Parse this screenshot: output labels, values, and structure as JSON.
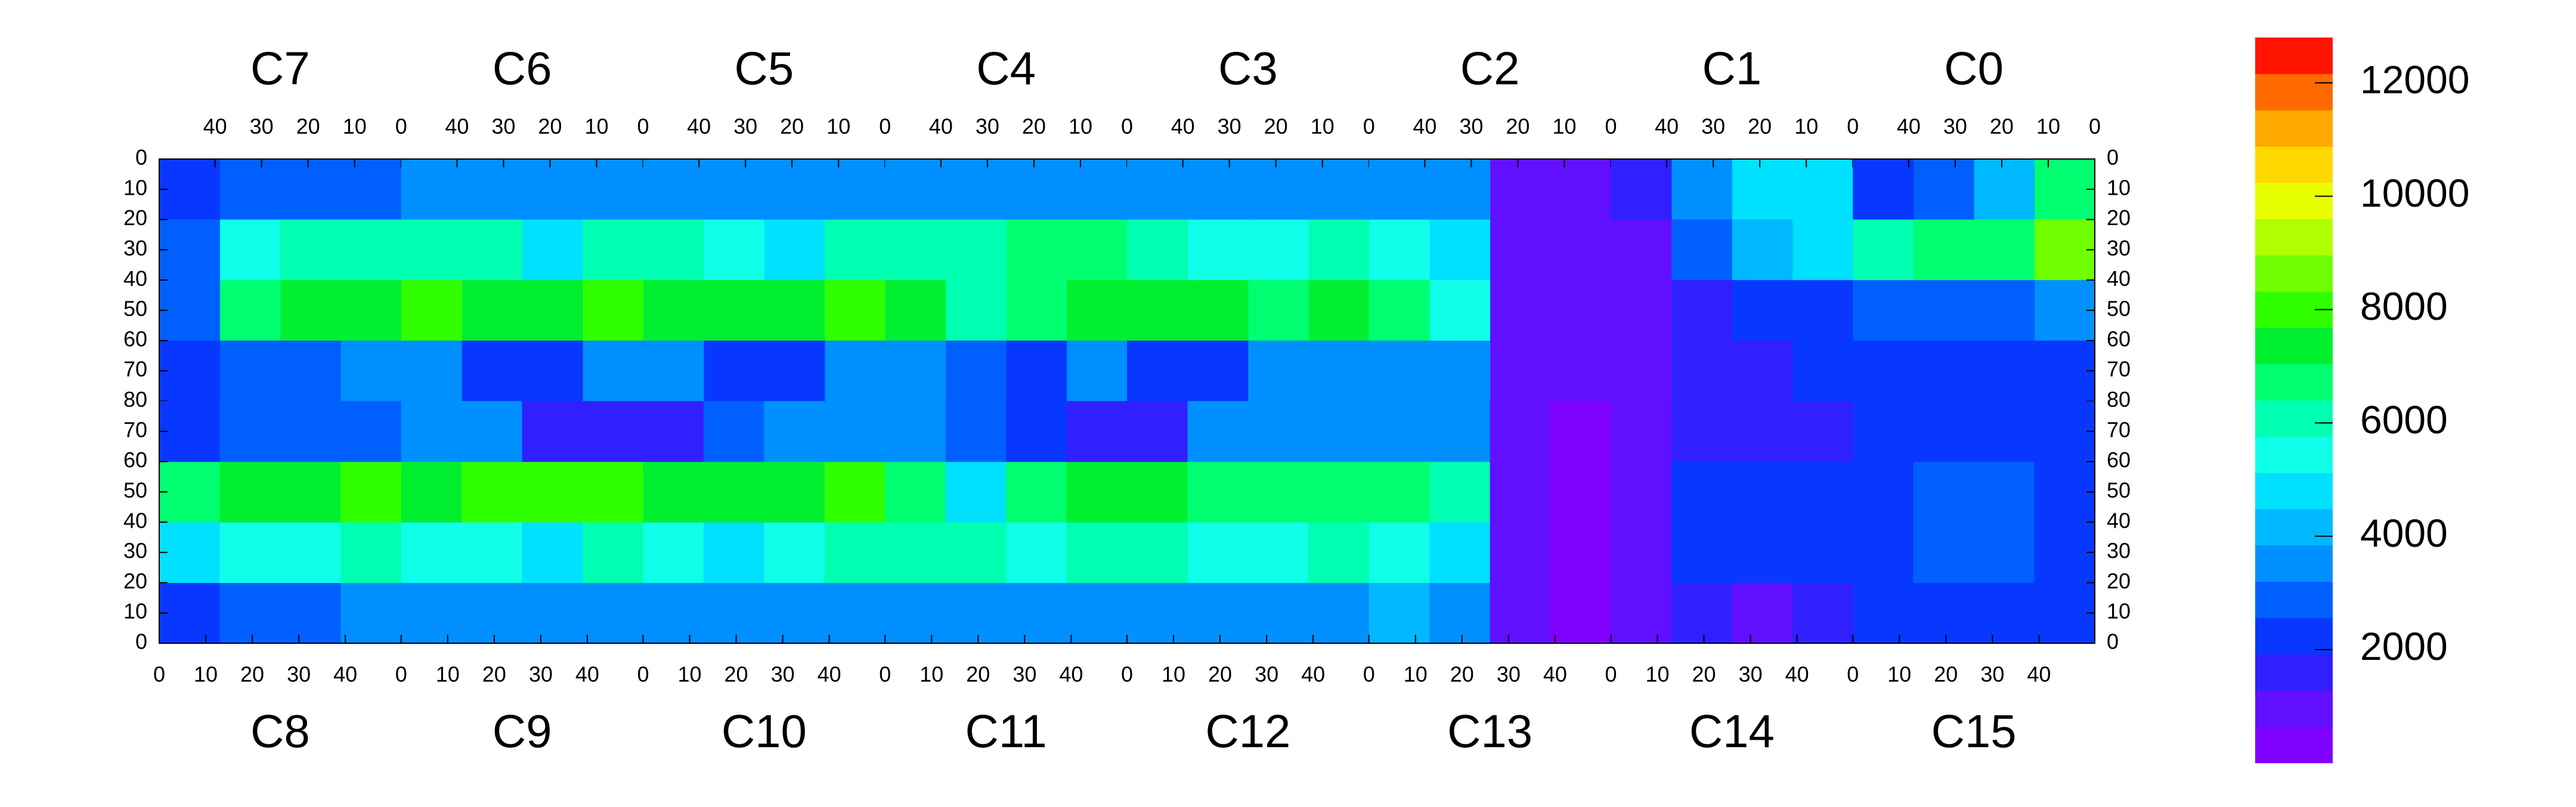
{
  "chart_data": {
    "type": "heatmap",
    "xbins": [
      0,
      13,
      26,
      39,
      52
    ],
    "ybins": [
      0,
      20,
      40,
      60,
      80
    ],
    "xlim": [
      0,
      52
    ],
    "ylim": [
      0,
      80
    ],
    "xticks": [
      0,
      10,
      20,
      30,
      40
    ],
    "yticks": [
      0,
      10,
      20,
      30,
      40,
      50,
      60,
      70,
      80
    ],
    "zlim": [
      0,
      12800
    ],
    "zticks": [
      2000,
      4000,
      6000,
      8000,
      10000,
      12000
    ],
    "palette": [
      "#8000ff",
      "#6010ff",
      "#3020ff",
      "#0838ff",
      "#0060ff",
      "#0090ff",
      "#00b8ff",
      "#00e0ff",
      "#10ffe8",
      "#00ffb0",
      "#00ff70",
      "#00f030",
      "#30ff00",
      "#70ff00",
      "#b0ff00",
      "#e8ff00",
      "#ffd800",
      "#ffa800",
      "#ff6a00",
      "#ff1400"
    ],
    "top_chips": [
      {
        "name": "C7",
        "values": [
          [
            3000,
            3000,
            2800,
            2200
          ],
          [
            6000,
            6000,
            5500,
            3000
          ],
          [
            7500,
            7500,
            6500,
            3000
          ],
          [
            3200,
            3000,
            3000,
            2500
          ]
        ]
      },
      {
        "name": "C6",
        "values": [
          [
            3200,
            3500,
            3400,
            3200
          ],
          [
            6200,
            5000,
            5800,
            6000
          ],
          [
            8000,
            7500,
            7500,
            7800
          ],
          [
            3500,
            2000,
            2200,
            3500
          ]
        ]
      },
      {
        "name": "C5",
        "values": [
          [
            3200,
            3400,
            3400,
            3300
          ],
          [
            5800,
            5000,
            5200,
            5800
          ],
          [
            7800,
            7600,
            7600,
            7600
          ],
          [
            3300,
            2000,
            2200,
            3300
          ]
        ]
      },
      {
        "name": "C4",
        "values": [
          [
            3300,
            3500,
            3500,
            3200
          ],
          [
            6500,
            6400,
            6200,
            6000
          ],
          [
            7600,
            7000,
            6000,
            7400
          ],
          [
            3200,
            2000,
            2600,
            3400
          ]
        ]
      },
      {
        "name": "C3",
        "values": [
          [
            3400,
            3400,
            3500,
            3300
          ],
          [
            6000,
            5600,
            5600,
            6200
          ],
          [
            7200,
            6800,
            7400,
            7600
          ],
          [
            3300,
            3400,
            2000,
            2200
          ]
        ]
      },
      {
        "name": "C2",
        "values": [
          [
            700,
            700,
            3800,
            3600
          ],
          [
            700,
            700,
            5000,
            5500
          ],
          [
            700,
            700,
            5500,
            6500
          ],
          [
            700,
            700,
            3500,
            3800
          ]
        ]
      },
      {
        "name": "C1",
        "values": [
          [
            5000,
            4500,
            3500,
            1500
          ],
          [
            4500,
            4000,
            3000,
            800
          ],
          [
            2500,
            2000,
            1500,
            700
          ],
          [
            2000,
            1800,
            1500,
            700
          ]
        ]
      },
      {
        "name": "C0",
        "values": [
          [
            7000,
            4000,
            3000,
            2500
          ],
          [
            8500,
            7000,
            6500,
            6000
          ],
          [
            3500,
            3000,
            3000,
            3000
          ],
          [
            2000,
            2000,
            2000,
            2000
          ]
        ]
      }
    ],
    "bottom_chips": [
      {
        "name": "C8",
        "values": [
          [
            2500,
            3000,
            3000,
            3200
          ],
          [
            4500,
            5500,
            5500,
            5800
          ],
          [
            6500,
            7500,
            7500,
            7800
          ],
          [
            2500,
            3000,
            3000,
            3000
          ]
        ]
      },
      {
        "name": "C9",
        "values": [
          [
            3200,
            3200,
            3300,
            3200
          ],
          [
            5500,
            5500,
            5000,
            5800
          ],
          [
            7500,
            8000,
            7800,
            8200
          ],
          [
            3300,
            3300,
            1500,
            1800
          ]
        ]
      },
      {
        "name": "C10",
        "values": [
          [
            3200,
            3300,
            3300,
            3300
          ],
          [
            5600,
            5000,
            5500,
            5800
          ],
          [
            7400,
            7500,
            7600,
            7800
          ],
          [
            1800,
            3000,
            3300,
            3300
          ]
        ]
      },
      {
        "name": "C11",
        "values": [
          [
            3200,
            3300,
            3300,
            3300
          ],
          [
            6000,
            6200,
            5500,
            5800
          ],
          [
            6500,
            4500,
            7000,
            7200
          ],
          [
            3200,
            3000,
            2500,
            1800
          ]
        ]
      },
      {
        "name": "C12",
        "values": [
          [
            3300,
            3200,
            3300,
            3300
          ],
          [
            5800,
            5600,
            5600,
            5800
          ],
          [
            7200,
            7000,
            6800,
            6500
          ],
          [
            1800,
            3200,
            3200,
            3200
          ]
        ]
      },
      {
        "name": "C13",
        "values": [
          [
            4000,
            3800,
            700,
            600
          ],
          [
            5500,
            5000,
            700,
            600
          ],
          [
            6500,
            6000,
            700,
            600
          ],
          [
            3500,
            3200,
            700,
            600
          ]
        ]
      },
      {
        "name": "C14",
        "values": [
          [
            700,
            1500,
            1200,
            1500
          ],
          [
            700,
            2000,
            2200,
            2500
          ],
          [
            700,
            2000,
            2200,
            2200
          ],
          [
            700,
            1500,
            1500,
            1500
          ]
        ]
      },
      {
        "name": "C15",
        "values": [
          [
            2000,
            2200,
            2200,
            2000
          ],
          [
            2500,
            2600,
            2600,
            2500
          ],
          [
            2500,
            2600,
            2600,
            2500
          ],
          [
            2000,
            2000,
            2000,
            2000
          ]
        ]
      }
    ]
  }
}
